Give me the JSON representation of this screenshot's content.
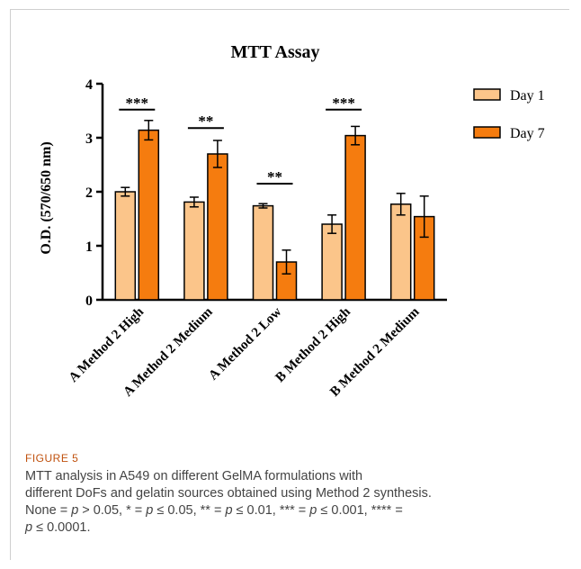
{
  "figure_label": "FIGURE 5",
  "caption": {
    "line1": "MTT analysis in A549 on different GelMA formulations with",
    "line2": "different DoFs and gelatin sources obtained using Method 2 synthesis.",
    "line3_parts": [
      "None = ",
      "p",
      " > 0.05, * = ",
      "p",
      " ≤ 0.05, ** = ",
      "p",
      " ≤ 0.01, *** = ",
      "p",
      " ≤ 0.001, **** ="
    ],
    "line4_parts": [
      "p",
      " ≤ 0.0001."
    ]
  },
  "colors": {
    "day1": "#fbc58a",
    "day7": "#f57c0f",
    "stroke": "#000000",
    "caption_label": "#c0510e"
  },
  "chart_data": {
    "type": "bar",
    "title": "MTT Assay",
    "ylabel": "O.D. (570/650 nm)",
    "xlabel": "",
    "ylim": [
      0,
      4
    ],
    "yticks": [
      0,
      1,
      2,
      3,
      4
    ],
    "categories": [
      "A Method 2 High",
      "A Method 2 Medium",
      "A Method 2 Low",
      "B Method 2 High",
      "B Method 2 Medium"
    ],
    "series": [
      {
        "name": "Day 1",
        "values": [
          2.0,
          1.81,
          1.74,
          1.4,
          1.77
        ],
        "errors": [
          0.08,
          0.09,
          0.04,
          0.17,
          0.2
        ]
      },
      {
        "name": "Day 7",
        "values": [
          3.14,
          2.7,
          0.7,
          3.04,
          1.54
        ],
        "errors": [
          0.18,
          0.25,
          0.22,
          0.17,
          0.38
        ]
      }
    ],
    "significance": [
      {
        "category": "A Method 2 High",
        "label": "***",
        "y": 3.52
      },
      {
        "category": "A Method 2 Medium",
        "label": "**",
        "y": 3.18
      },
      {
        "category": "A Method 2 Low",
        "label": "**",
        "y": 2.15
      },
      {
        "category": "B Method 2 High",
        "label": "***",
        "y": 3.52
      }
    ],
    "legend": {
      "position": "top-right"
    },
    "grid": false
  }
}
